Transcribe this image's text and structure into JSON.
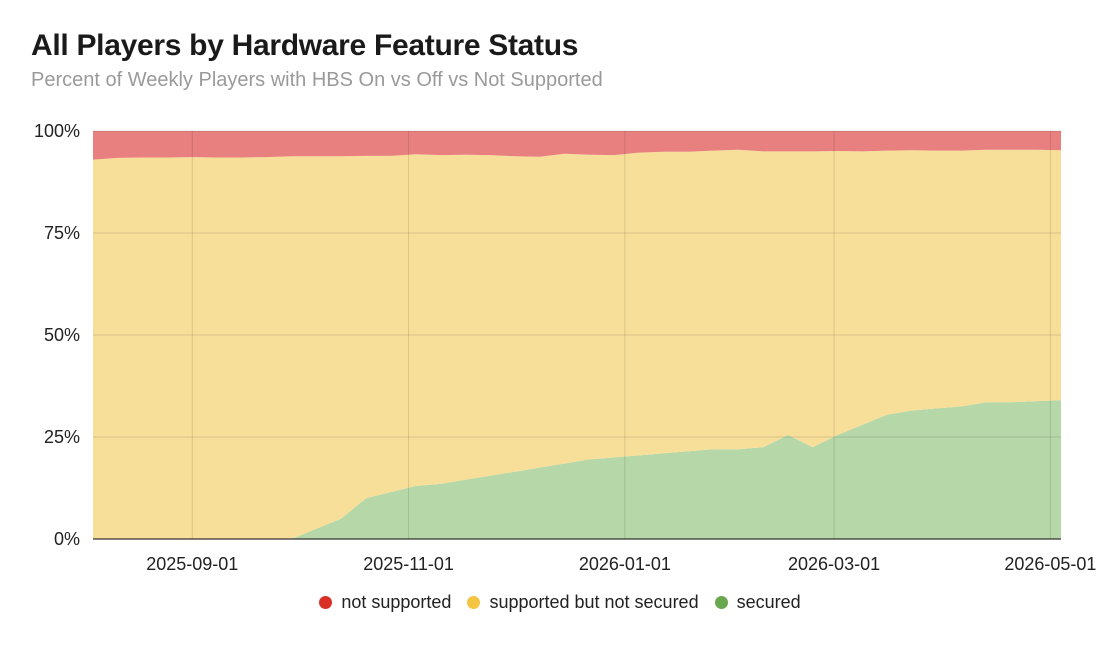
{
  "title": "All Players by Hardware Feature Status",
  "subtitle": "Percent of Weekly Players with HBS On vs Off vs Not Supported",
  "legend": [
    {
      "label": "not supported",
      "color": "#d93025"
    },
    {
      "label": "supported but not secured",
      "color": "#f4c542"
    },
    {
      "label": "secured",
      "color": "#6aa84f"
    }
  ],
  "chart_data": {
    "type": "area",
    "stacked": true,
    "title": "All Players by Hardware Feature Status",
    "subtitle": "Percent of Weekly Players with HBS On vs Off vs Not Supported",
    "xlabel": "",
    "ylabel": "",
    "ylim": [
      0,
      100
    ],
    "y_ticks": [
      "0%",
      "25%",
      "50%",
      "75%",
      "100%"
    ],
    "x_ticks": [
      "2025-09-01",
      "2025-11-01",
      "2026-01-01",
      "2026-03-01",
      "2026-05-01"
    ],
    "grid": true,
    "legend_position": "bottom",
    "x": [
      "2025-08-04",
      "2025-08-11",
      "2025-08-18",
      "2025-08-25",
      "2025-09-01",
      "2025-09-08",
      "2025-09-15",
      "2025-09-22",
      "2025-09-29",
      "2025-10-06",
      "2025-10-13",
      "2025-10-20",
      "2025-10-27",
      "2025-11-03",
      "2025-11-10",
      "2025-11-17",
      "2025-11-24",
      "2025-12-01",
      "2025-12-08",
      "2025-12-15",
      "2025-12-22",
      "2025-12-29",
      "2026-01-05",
      "2026-01-12",
      "2026-01-19",
      "2026-01-26",
      "2026-02-02",
      "2026-02-09",
      "2026-02-16",
      "2026-02-23",
      "2026-03-02",
      "2026-03-09",
      "2026-03-16",
      "2026-03-23",
      "2026-03-30",
      "2026-04-06",
      "2026-04-13",
      "2026-04-20",
      "2026-04-27",
      "2026-05-04"
    ],
    "series": [
      {
        "name": "secured",
        "color": "#b6d7a8",
        "values": [
          0,
          0,
          0,
          0,
          0,
          0,
          0,
          0,
          0,
          2.5,
          5,
          10,
          11.5,
          13,
          13.5,
          14.5,
          15.5,
          16.5,
          17.5,
          18.5,
          19.5,
          20,
          20.5,
          21,
          21.5,
          22,
          22,
          22.5,
          25.5,
          22.5,
          25.5,
          28,
          30.5,
          31.5,
          32,
          32.5,
          33.5,
          33.5,
          33.8,
          34
        ]
      },
      {
        "name": "supported but not secured",
        "color": "#f7df99",
        "values": [
          93,
          93.4,
          93.5,
          93.5,
          93.6,
          93.5,
          93.5,
          93.6,
          93.8,
          91.3,
          88.8,
          83.9,
          82.4,
          81.3,
          80.6,
          79.7,
          78.6,
          77.3,
          76.2,
          75.9,
          74.7,
          74.1,
          74.2,
          73.9,
          73.4,
          73.2,
          73.4,
          72.5,
          69.5,
          72.5,
          69.6,
          67,
          64.7,
          63.8,
          63.2,
          62.7,
          61.9,
          61.9,
          61.6,
          61.3
        ]
      },
      {
        "name": "not supported",
        "color": "#e88080",
        "values": [
          7,
          6.6,
          6.5,
          6.5,
          6.4,
          6.5,
          6.5,
          6.4,
          6.2,
          6.2,
          6.2,
          6.1,
          6.1,
          5.7,
          5.9,
          5.8,
          5.9,
          6.2,
          6.3,
          5.6,
          5.8,
          5.9,
          5.3,
          5.1,
          5.1,
          4.8,
          4.6,
          5,
          5,
          5,
          4.9,
          5,
          4.8,
          4.7,
          4.8,
          4.8,
          4.6,
          4.6,
          4.6,
          4.7
        ]
      }
    ]
  }
}
